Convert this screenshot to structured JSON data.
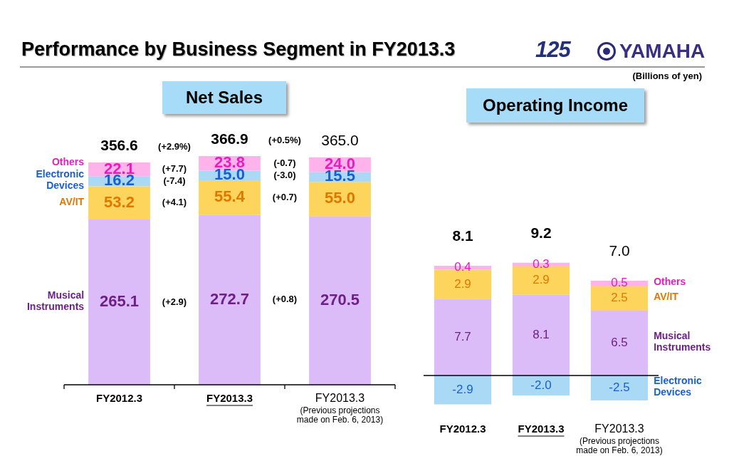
{
  "page": {
    "title": "Performance by Business Segment in FY2013.3",
    "logo": [
      "125",
      "YAMAHA"
    ],
    "unit": "(Billions of yen)"
  },
  "chart_data": [
    {
      "type": "bar",
      "title": "Net Sales",
      "stacked": true,
      "data_labels": true,
      "tick_labels": false,
      "grid": false,
      "legend": "left",
      "categories": [
        "FY2012.3",
        "FY2013.3",
        "FY2013.3"
      ],
      "category_notes": [
        null,
        null,
        "(Previous projections made on Feb. 6, 2013)"
      ],
      "ylim": [
        0,
        400
      ],
      "totals": [
        356.6,
        366.9,
        365.0
      ],
      "total_labels": [
        "356.6",
        "366.9",
        "365.0"
      ],
      "total_changes": [
        "(+2.9%)",
        "(+0.5%)"
      ],
      "series": [
        {
          "name": "Musical Instruments",
          "color": "#dcbcf8",
          "values": [
            265.1,
            272.7,
            270.5
          ],
          "changes": [
            "(+2.9)",
            "(+0.8)"
          ]
        },
        {
          "name": "AV/IT",
          "color": "#fdd55c",
          "values": [
            53.2,
            55.4,
            55.0
          ],
          "value_labels": [
            "53.2",
            "55.4",
            "55.0"
          ],
          "changes": [
            "(+4.1)",
            "(+0.7)"
          ]
        },
        {
          "name": "Electronic Devices",
          "color": "#aad9f6",
          "values": [
            16.2,
            15.0,
            15.5
          ],
          "value_labels": [
            "16.2",
            "15.0",
            "15.5"
          ],
          "changes": [
            "(-7.4)",
            "(-3.0)"
          ]
        },
        {
          "name": "Others",
          "color": "#ffb3ea",
          "values": [
            22.1,
            23.8,
            24.0
          ],
          "value_labels": [
            "22.1",
            "23.8",
            "24.0"
          ],
          "changes": [
            "(+7.7)",
            "(-0.7)"
          ]
        }
      ]
    },
    {
      "type": "bar",
      "title": "Operating Income",
      "stacked": true,
      "data_labels": true,
      "tick_labels": false,
      "grid": false,
      "legend": "right",
      "categories": [
        "FY2012.3",
        "FY2013.3",
        "FY2013.3"
      ],
      "category_notes": [
        null,
        null,
        "(Previous projections made on Feb. 6, 2013)"
      ],
      "ylim": [
        -4,
        12
      ],
      "totals": [
        8.1,
        9.2,
        7.0
      ],
      "total_labels": [
        "8.1",
        "9.2",
        "7.0"
      ],
      "series": [
        {
          "name": "Musical Instruments",
          "color": "#dcbcf8",
          "values": [
            7.7,
            8.1,
            6.5
          ]
        },
        {
          "name": "AV/IT",
          "color": "#fdd55c",
          "values": [
            2.9,
            2.9,
            2.5
          ]
        },
        {
          "name": "Others",
          "color": "#ffb3ea",
          "values": [
            0.4,
            0.3,
            0.5
          ]
        },
        {
          "name": "Electronic Devices",
          "color": "#aad9f6",
          "values": [
            -2.9,
            -2.0,
            -2.5
          ],
          "value_labels": [
            "-2.9",
            "-2.0",
            "-2.5"
          ]
        }
      ]
    }
  ]
}
